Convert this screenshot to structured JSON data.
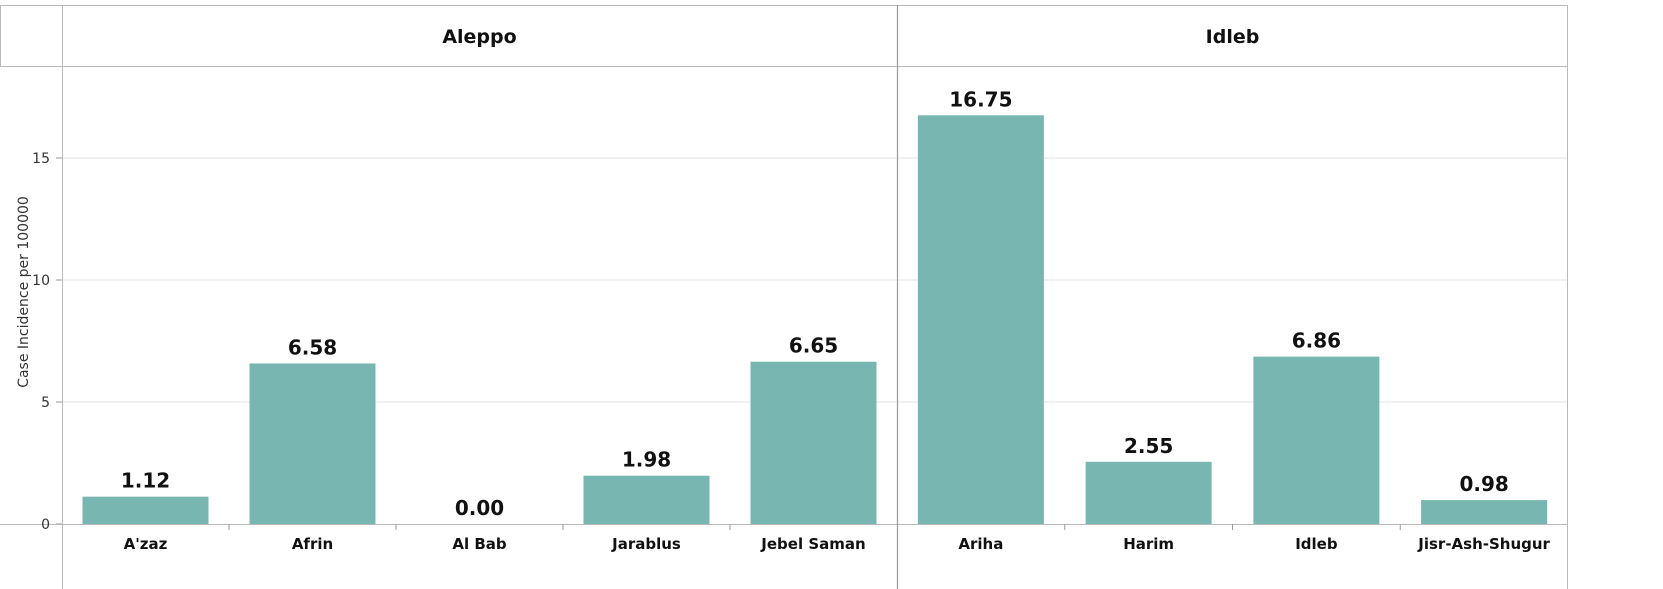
{
  "chart_data": {
    "type": "bar",
    "ylabel": "Case Incidence per 100000",
    "ylim": [
      0,
      18.5
    ],
    "yticks": [
      0,
      5,
      10,
      15
    ],
    "grid": true,
    "bar_color": "#78b7b1",
    "panels": [
      {
        "title": "Aleppo",
        "categories": [
          "A'zaz",
          "Afrin",
          "Al Bab",
          "Jarablus",
          "Jebel Saman"
        ],
        "values": [
          1.12,
          6.58,
          0.0,
          1.98,
          6.65
        ],
        "labels": [
          "1.12",
          "6.58",
          "0.00",
          "1.98",
          "6.65"
        ]
      },
      {
        "title": "Idleb",
        "categories": [
          "Ariha",
          "Harim",
          "Idleb",
          "Jisr-Ash-Shugur"
        ],
        "values": [
          16.75,
          2.55,
          6.86,
          0.98
        ],
        "labels": [
          "16.75",
          "2.55",
          "6.86",
          "0.98"
        ]
      }
    ]
  }
}
